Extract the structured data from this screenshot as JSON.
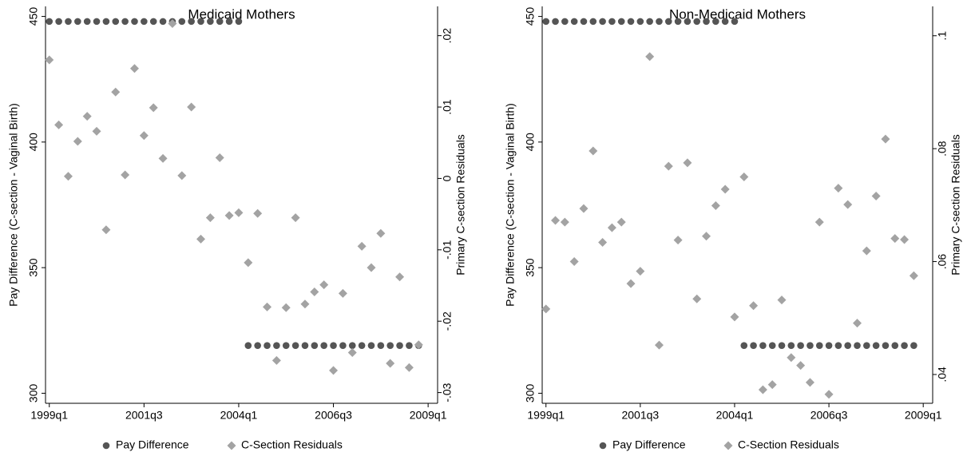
{
  "chart_data": [
    {
      "type": "scatter",
      "title": "Medicaid Mothers",
      "ylabel": "Pay Difference (C-section - Vaginal Birth)",
      "y2label": "Primary C-section Residuals",
      "x": [
        156,
        157,
        158,
        159,
        160,
        161,
        162,
        163,
        164,
        165,
        166,
        167,
        168,
        169,
        170,
        171,
        172,
        173,
        174,
        175,
        176,
        177,
        178,
        179,
        180,
        181,
        182,
        183,
        184,
        185,
        186,
        187,
        188,
        189,
        190,
        191,
        192,
        193,
        194,
        195
      ],
      "xlim": [
        155.6,
        197
      ],
      "xticks": [
        {
          "value": 156,
          "label": "1999q1"
        },
        {
          "value": 166,
          "label": "2001q3"
        },
        {
          "value": 176,
          "label": "2004q1"
        },
        {
          "value": 186,
          "label": "2006q3"
        },
        {
          "value": 196,
          "label": "2009q1"
        }
      ],
      "ylim": [
        296,
        454
      ],
      "yticks": [
        300,
        350,
        400,
        450
      ],
      "y2lim": [
        -0.0315,
        0.0241
      ],
      "y2ticks": [
        {
          "value": -0.03,
          "label": "-.03"
        },
        {
          "value": -0.02,
          "label": "-.02"
        },
        {
          "value": -0.01,
          "label": "-.01"
        },
        0,
        {
          "value": 0.01,
          "label": ".01"
        },
        {
          "value": 0.02,
          "label": ".02"
        }
      ],
      "series": [
        {
          "name": "Pay Difference",
          "color": "#555555",
          "marker": "circle",
          "values": [
            448,
            448,
            448,
            448,
            448,
            448,
            448,
            448,
            448,
            448,
            448,
            448,
            448,
            448,
            448,
            448,
            448,
            448,
            448,
            448,
            448,
            319,
            319,
            319,
            319,
            319,
            319,
            319,
            319,
            319,
            319,
            319,
            319,
            319,
            319,
            319,
            319,
            319,
            319,
            319
          ]
        },
        {
          "name": "C-Section Residuals",
          "color": "#a3a3a3",
          "marker": "diamond",
          "axis": "y2",
          "values": [
            0.0166,
            0.0075,
            0.0003,
            0.0052,
            0.0087,
            0.0066,
            -0.0072,
            0.0121,
            0.0005,
            0.0154,
            0.006,
            0.0099,
            0.0028,
            0.0217,
            0.0004,
            0.01,
            -0.0085,
            -0.0055,
            0.0029,
            -0.0052,
            -0.0048,
            -0.0118,
            -0.0049,
            -0.018,
            -0.0255,
            -0.0181,
            -0.0055,
            -0.0176,
            -0.0159,
            -0.0149,
            -0.0269,
            -0.0161,
            -0.0244,
            -0.0095,
            -0.0125,
            -0.0077,
            -0.0259,
            -0.0138,
            -0.0265,
            -0.0233
          ]
        }
      ]
    },
    {
      "type": "scatter",
      "title": "Non-Medicaid Mothers",
      "ylabel": "Pay Difference (C-section - Vaginal Birth)",
      "y2label": "Primary C-section Residuals",
      "x": [
        156,
        157,
        158,
        159,
        160,
        161,
        162,
        163,
        164,
        165,
        166,
        167,
        168,
        169,
        170,
        171,
        172,
        173,
        174,
        175,
        176,
        177,
        178,
        179,
        180,
        181,
        182,
        183,
        184,
        185,
        186,
        187,
        188,
        189,
        190,
        191,
        192,
        193,
        194,
        195
      ],
      "xlim": [
        155.6,
        197
      ],
      "xticks": [
        {
          "value": 156,
          "label": "1999q1"
        },
        {
          "value": 166,
          "label": "2001q3"
        },
        {
          "value": 176,
          "label": "2004q1"
        },
        {
          "value": 186,
          "label": "2006q3"
        },
        {
          "value": 196,
          "label": "2009q1"
        }
      ],
      "ylim": [
        296,
        454
      ],
      "yticks": [
        300,
        350,
        400,
        450
      ],
      "y2lim": [
        0.0349,
        0.1052
      ],
      "y2ticks": [
        {
          "value": 0.04,
          "label": ".04"
        },
        {
          "value": 0.06,
          "label": ".06"
        },
        {
          "value": 0.08,
          "label": ".08"
        },
        {
          "value": 0.1,
          "label": ".1"
        }
      ],
      "series": [
        {
          "name": "Pay Difference",
          "color": "#555555",
          "marker": "circle",
          "values": [
            448,
            448,
            448,
            448,
            448,
            448,
            448,
            448,
            448,
            448,
            448,
            448,
            448,
            448,
            448,
            448,
            448,
            448,
            448,
            448,
            448,
            319,
            319,
            319,
            319,
            319,
            319,
            319,
            319,
            319,
            319,
            319,
            319,
            319,
            319,
            319,
            319,
            319,
            319,
            319
          ]
        },
        {
          "name": "C-Section Residuals",
          "color": "#a3a3a3",
          "marker": "diamond",
          "axis": "y2",
          "values": [
            0.0516,
            0.0673,
            0.067,
            0.06,
            0.0694,
            0.0796,
            0.0634,
            0.066,
            0.067,
            0.0561,
            0.0583,
            0.0963,
            0.0452,
            0.0769,
            0.0638,
            0.0775,
            0.0534,
            0.0645,
            0.0699,
            0.0728,
            0.0502,
            0.075,
            0.0522,
            0.0373,
            0.0382,
            0.0532,
            0.043,
            0.0416,
            0.0386,
            0.067,
            0.0365,
            0.073,
            0.0701,
            0.0491,
            0.0619,
            0.0716,
            0.0817,
            0.0641,
            0.0639,
            0.0575
          ]
        }
      ]
    }
  ]
}
